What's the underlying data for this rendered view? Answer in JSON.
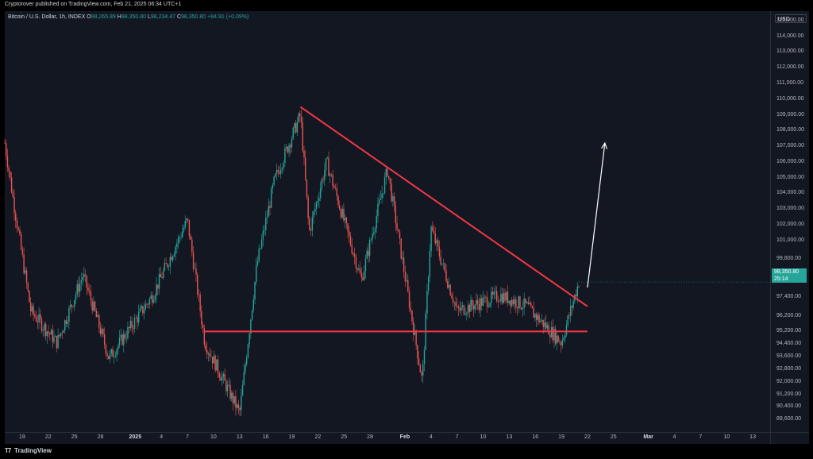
{
  "header": {
    "published": "Cryptorover published on TradingView.com, Feb 21, 2025 06:34 UTC+1"
  },
  "legend": {
    "symbol": "Bitcoin / U.S. Dollar, 1h, INDEX",
    "open_label": "O",
    "open": "98,265.89",
    "high_label": "H",
    "high": "98,350.80",
    "low_label": "L",
    "low": "98,234.47",
    "close_label": "C",
    "close": "98,350.80",
    "change": "+84.91 (+0.09%)"
  },
  "price_axis": {
    "currency": "USD",
    "ticks": [
      "115,000.00",
      "114,000.00",
      "113,000.00",
      "112,000.00",
      "111,000.00",
      "110,000.00",
      "109,000.00",
      "108,000.00",
      "107,000.00",
      "106,000.00",
      "105,000.00",
      "104,000.00",
      "103,000.00",
      "102,000.00",
      "101,000.00",
      "99,800.00",
      "98,600.00",
      "97,400.00",
      "96,200.00",
      "95,200.00",
      "94,400.00",
      "93,600.00",
      "92,800.00",
      "92,000.00",
      "91,200.00",
      "90,400.00",
      "89,600.00"
    ],
    "current_price": "98,350.80",
    "countdown": "25:14"
  },
  "time_axis": {
    "ticks": [
      "19",
      "22",
      "25",
      "28",
      "2025",
      "4",
      "7",
      "10",
      "13",
      "16",
      "19",
      "22",
      "25",
      "28",
      "Feb",
      "4",
      "7",
      "10",
      "13",
      "16",
      "19",
      "22",
      "25",
      "Mar",
      "4",
      "7",
      "10",
      "13"
    ]
  },
  "chart_data": {
    "type": "candlestick",
    "interval": "1h",
    "x_range": [
      "2024-12-17",
      "2025-03-15"
    ],
    "y_range": [
      88800,
      115600
    ],
    "approx_price_path": [
      {
        "date": "2024-12-17",
        "price": 107200
      },
      {
        "date": "2024-12-18",
        "price": 103500
      },
      {
        "date": "2024-12-20",
        "price": 96500
      },
      {
        "date": "2024-12-23",
        "price": 94500
      },
      {
        "date": "2024-12-26",
        "price": 98800
      },
      {
        "date": "2024-12-29",
        "price": 93500
      },
      {
        "date": "2025-01-03",
        "price": 97500
      },
      {
        "date": "2025-01-07",
        "price": 102300
      },
      {
        "date": "2025-01-09",
        "price": 94500
      },
      {
        "date": "2025-01-13",
        "price": 90000
      },
      {
        "date": "2025-01-15",
        "price": 99500
      },
      {
        "date": "2025-01-17",
        "price": 104800
      },
      {
        "date": "2025-01-20",
        "price": 109000
      },
      {
        "date": "2025-01-21",
        "price": 101500
      },
      {
        "date": "2025-01-23",
        "price": 106000
      },
      {
        "date": "2025-01-27",
        "price": 98500
      },
      {
        "date": "2025-01-30",
        "price": 105500
      },
      {
        "date": "2025-02-03",
        "price": 92000
      },
      {
        "date": "2025-02-04",
        "price": 101800
      },
      {
        "date": "2025-02-07",
        "price": 96500
      },
      {
        "date": "2025-02-12",
        "price": 97500
      },
      {
        "date": "2025-02-15",
        "price": 96800
      },
      {
        "date": "2025-02-19",
        "price": 94500
      },
      {
        "date": "2025-02-21",
        "price": 98350
      }
    ],
    "annotations": [
      {
        "type": "trendline",
        "color": "#f23645",
        "from": {
          "date": "2025-01-20",
          "price": 109500
        },
        "to": {
          "date": "2025-02-22",
          "price": 96800
        }
      },
      {
        "type": "horizontal_line",
        "color": "#f23645",
        "price": 95200,
        "from_date": "2025-01-09",
        "to_date": "2025-02-22"
      },
      {
        "type": "arrow",
        "color": "#ffffff",
        "from": {
          "date": "2025-02-22",
          "price": 98000
        },
        "to": {
          "date": "2025-02-24",
          "price": 107200
        }
      }
    ]
  },
  "footer": {
    "brand": "TradingView"
  }
}
